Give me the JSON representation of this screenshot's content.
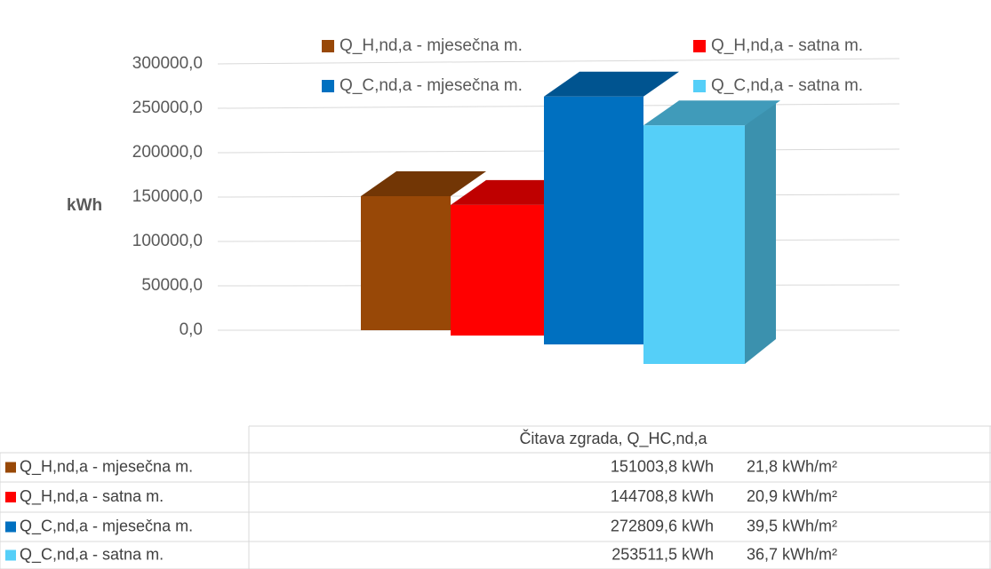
{
  "chart_data": {
    "type": "bar3d",
    "ylabel": "kWh",
    "categories": [
      "Čitava zgrada, Q_HC,nd,a"
    ],
    "ylim": [
      0,
      300000
    ],
    "yticks": [
      {
        "value": 0,
        "label": "0,0"
      },
      {
        "value": 50000,
        "label": "50000,0"
      },
      {
        "value": 100000,
        "label": "100000,0"
      },
      {
        "value": 150000,
        "label": "150000,0"
      },
      {
        "value": 200000,
        "label": "200000,0"
      },
      {
        "value": 250000,
        "label": "250000,0"
      },
      {
        "value": 300000,
        "label": "300000,0"
      }
    ],
    "grid": true,
    "series": [
      {
        "name": "Q_H,nd,a - mjesečna m.",
        "color": "#984807",
        "values": [
          151003.8
        ],
        "value_labels": [
          "151003,8 kWh"
        ],
        "specific_labels": [
          "21,8 kWh/m²"
        ]
      },
      {
        "name": "Q_H,nd,a - satna m.",
        "color": "#ff0000",
        "values": [
          144708.8
        ],
        "value_labels": [
          "144708,8 kWh"
        ],
        "specific_labels": [
          "20,9 kWh/m²"
        ]
      },
      {
        "name": "Q_C,nd,a - mjesečna m.",
        "color": "#0070c0",
        "values": [
          272809.6
        ],
        "value_labels": [
          "272809,6 kWh"
        ],
        "specific_labels": [
          "39,5 kWh/m²"
        ]
      },
      {
        "name": "Q_C,nd,a - satna m.",
        "color": "#55cff8",
        "values": [
          253511.5
        ],
        "value_labels": [
          "253511,5 kWh"
        ],
        "specific_labels": [
          "36,7 kWh/m²"
        ]
      }
    ]
  }
}
